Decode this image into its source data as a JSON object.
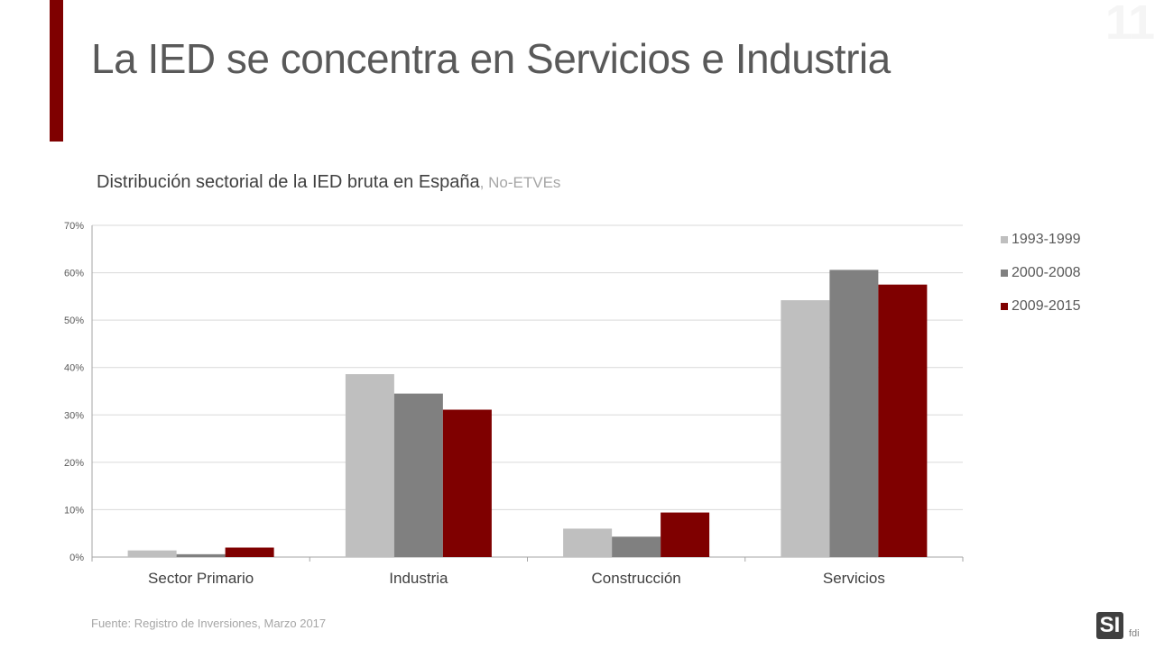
{
  "page": {
    "number": "11",
    "title": "La IED se concentra en Servicios e Industria",
    "source": "Fuente: Registro de Inversiones, Marzo 2017",
    "logo": {
      "mark": "SI",
      "text": "fdi"
    }
  },
  "colors": {
    "accent": "#7f0000",
    "series": [
      "#bfbfbf",
      "#808080",
      "#7f0000"
    ],
    "grid": "#d9d9d9",
    "axis": "#a6a6a6",
    "tick_text": "#595959"
  },
  "chart_data": {
    "type": "bar",
    "title": "Distribución sectorial de la IED bruta en España",
    "subtitle": ", No-ETVEs",
    "categories": [
      "Sector Primario",
      "Industria",
      "Construcción",
      "Servicios"
    ],
    "series": [
      {
        "name": "1993-1999",
        "values": [
          1.4,
          38.6,
          6.0,
          54.2
        ]
      },
      {
        "name": "2000-2008",
        "values": [
          0.6,
          34.5,
          4.3,
          60.6
        ]
      },
      {
        "name": "2009-2015",
        "values": [
          2.0,
          31.1,
          9.4,
          57.5
        ]
      }
    ],
    "ylim": [
      0,
      70
    ],
    "yticks": [
      0,
      10,
      20,
      30,
      40,
      50,
      60,
      70
    ],
    "ytick_suffix": "%",
    "grid": true,
    "legend": "right"
  }
}
